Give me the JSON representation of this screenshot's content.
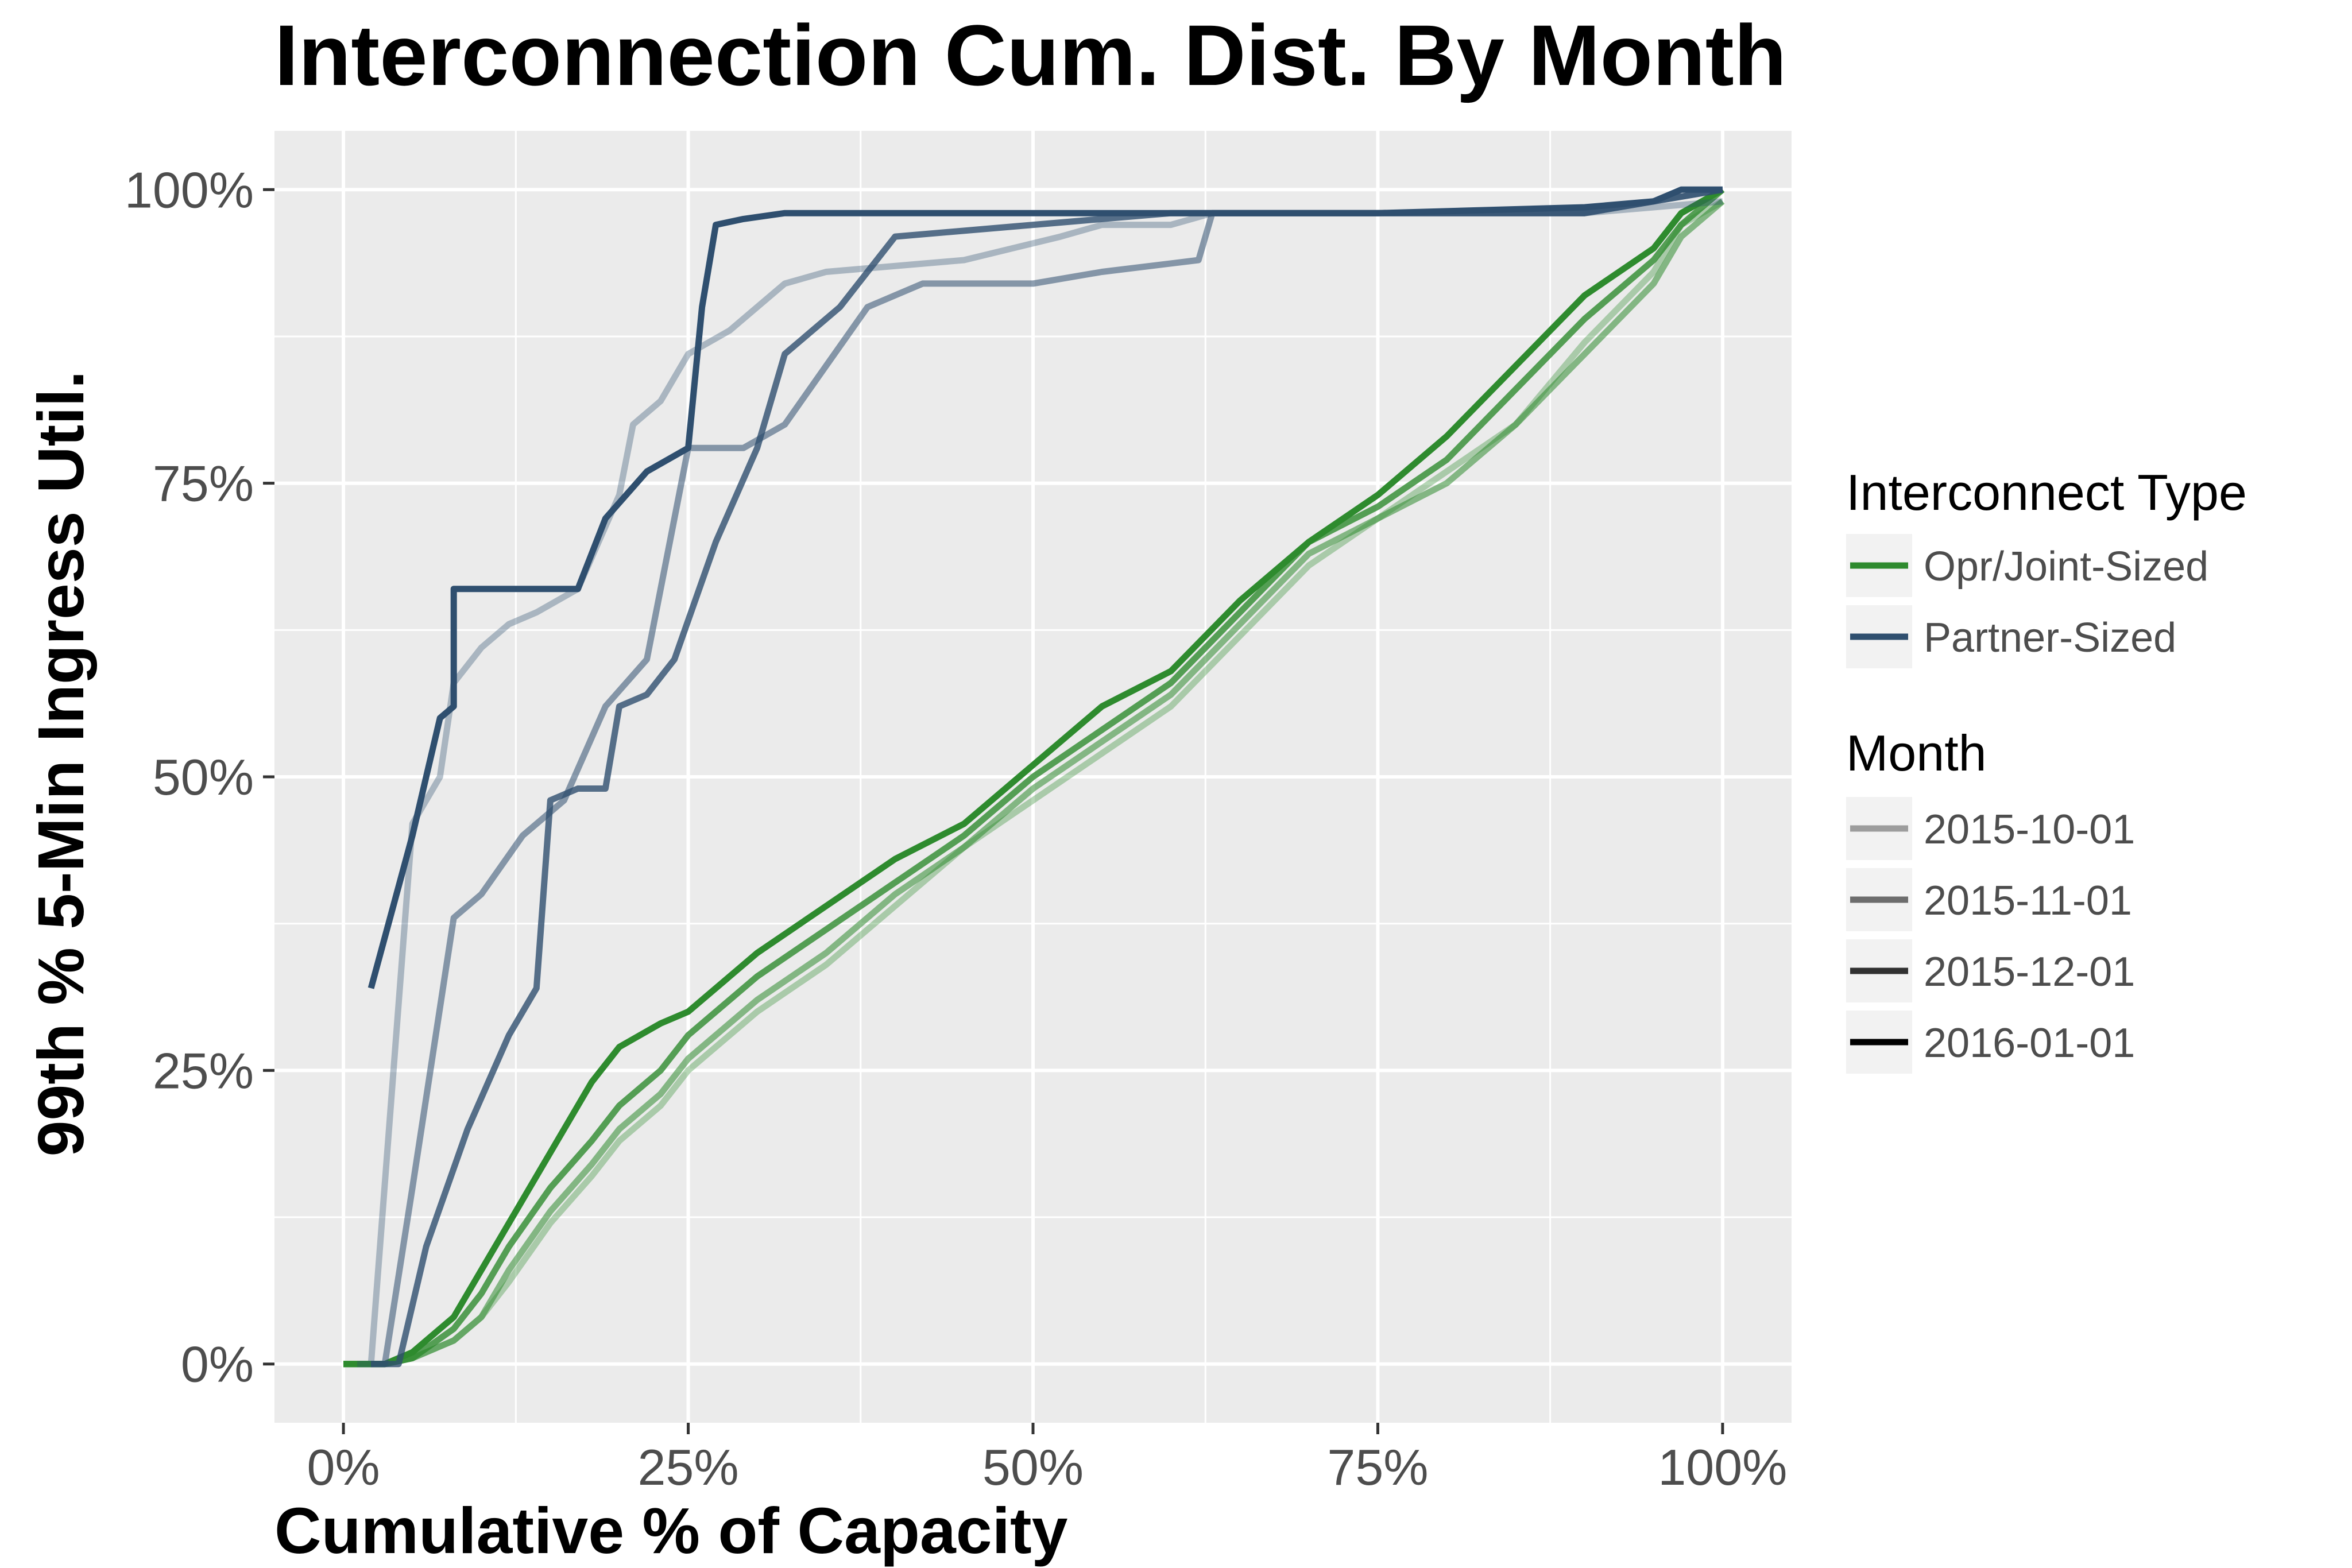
{
  "chart_data": {
    "type": "line",
    "title": "Interconnection Cum. Dist. By Month",
    "xlabel": "Cumulative % of Capacity",
    "ylabel": "99th % 5-Min Ingress Util.",
    "xlim": [
      -0.05,
      1.05
    ],
    "ylim": [
      -0.05,
      1.05
    ],
    "x_ticks": [
      0,
      0.25,
      0.5,
      0.75,
      1
    ],
    "x_tick_labels": [
      "0%",
      "25%",
      "50%",
      "75%",
      "100%"
    ],
    "y_ticks": [
      0,
      0.25,
      0.5,
      0.75,
      1
    ],
    "y_tick_labels": [
      "0%",
      "25%",
      "50%",
      "75%",
      "100%"
    ],
    "grid": true,
    "panel_background": "#ebebeb",
    "legend_position": "right",
    "legend": {
      "type_title": "Interconnect Type",
      "types": [
        {
          "label": "Opr/Joint-Sized",
          "color": "#2e8b2e"
        },
        {
          "label": "Partner-Sized",
          "color": "#2f4f6f"
        }
      ],
      "month_title": "Month",
      "months": [
        {
          "label": "2015-10-01",
          "alpha": 0.35
        },
        {
          "label": "2015-11-01",
          "alpha": 0.55
        },
        {
          "label": "2015-12-01",
          "alpha": 0.8
        },
        {
          "label": "2016-01-01",
          "alpha": 1.0
        }
      ]
    },
    "series": [
      {
        "type": "Opr/Joint-Sized",
        "month": "2015-10-01",
        "color": "#2e8b2e",
        "alpha": 0.35,
        "x": [
          0,
          0.03,
          0.05,
          0.08,
          0.1,
          0.12,
          0.15,
          0.18,
          0.2,
          0.23,
          0.25,
          0.3,
          0.35,
          0.4,
          0.45,
          0.5,
          0.55,
          0.6,
          0.65,
          0.7,
          0.75,
          0.8,
          0.85,
          0.9,
          0.95,
          0.97,
          1.0
        ],
        "y": [
          0,
          0,
          0.005,
          0.02,
          0.04,
          0.07,
          0.12,
          0.16,
          0.19,
          0.22,
          0.25,
          0.3,
          0.34,
          0.39,
          0.44,
          0.48,
          0.52,
          0.56,
          0.62,
          0.68,
          0.72,
          0.76,
          0.8,
          0.87,
          0.93,
          0.97,
          0.99
        ]
      },
      {
        "type": "Opr/Joint-Sized",
        "month": "2015-11-01",
        "color": "#2e8b2e",
        "alpha": 0.55,
        "x": [
          0,
          0.03,
          0.05,
          0.08,
          0.1,
          0.12,
          0.15,
          0.18,
          0.2,
          0.23,
          0.25,
          0.3,
          0.35,
          0.4,
          0.45,
          0.5,
          0.55,
          0.6,
          0.65,
          0.7,
          0.75,
          0.8,
          0.85,
          0.9,
          0.95,
          0.97,
          1.0
        ],
        "y": [
          0,
          0,
          0.005,
          0.02,
          0.04,
          0.08,
          0.13,
          0.17,
          0.2,
          0.23,
          0.26,
          0.31,
          0.35,
          0.4,
          0.44,
          0.49,
          0.53,
          0.57,
          0.63,
          0.69,
          0.72,
          0.75,
          0.8,
          0.86,
          0.92,
          0.96,
          0.99
        ]
      },
      {
        "type": "Opr/Joint-Sized",
        "month": "2015-12-01",
        "color": "#2e8b2e",
        "alpha": 0.8,
        "x": [
          0,
          0.03,
          0.05,
          0.08,
          0.1,
          0.12,
          0.15,
          0.18,
          0.2,
          0.23,
          0.25,
          0.3,
          0.35,
          0.4,
          0.45,
          0.5,
          0.55,
          0.6,
          0.65,
          0.7,
          0.75,
          0.8,
          0.85,
          0.9,
          0.95,
          0.97,
          1.0
        ],
        "y": [
          0,
          0,
          0.005,
          0.03,
          0.06,
          0.1,
          0.15,
          0.19,
          0.22,
          0.25,
          0.28,
          0.33,
          0.37,
          0.41,
          0.45,
          0.5,
          0.54,
          0.58,
          0.64,
          0.7,
          0.73,
          0.77,
          0.83,
          0.89,
          0.94,
          0.97,
          1.0
        ]
      },
      {
        "type": "Opr/Joint-Sized",
        "month": "2016-01-01",
        "color": "#2e8b2e",
        "alpha": 1.0,
        "x": [
          0,
          0.03,
          0.05,
          0.08,
          0.1,
          0.12,
          0.15,
          0.18,
          0.2,
          0.23,
          0.25,
          0.3,
          0.35,
          0.4,
          0.45,
          0.5,
          0.55,
          0.6,
          0.65,
          0.7,
          0.75,
          0.8,
          0.85,
          0.9,
          0.95,
          0.97,
          1.0
        ],
        "y": [
          0,
          0,
          0.01,
          0.04,
          0.08,
          0.12,
          0.18,
          0.24,
          0.27,
          0.29,
          0.3,
          0.35,
          0.39,
          0.43,
          0.46,
          0.51,
          0.56,
          0.59,
          0.65,
          0.7,
          0.74,
          0.79,
          0.85,
          0.91,
          0.95,
          0.98,
          1.0
        ]
      },
      {
        "type": "Partner-Sized",
        "month": "2015-10-01",
        "color": "#2f4f6f",
        "alpha": 0.35,
        "x": [
          0.01,
          0.02,
          0.05,
          0.07,
          0.08,
          0.1,
          0.12,
          0.14,
          0.17,
          0.2,
          0.21,
          0.23,
          0.25,
          0.28,
          0.32,
          0.35,
          0.45,
          0.52,
          0.55,
          0.6,
          0.63,
          0.75,
          0.9,
          0.95,
          1.0
        ],
        "y": [
          0,
          0,
          0.46,
          0.5,
          0.58,
          0.61,
          0.63,
          0.64,
          0.66,
          0.74,
          0.8,
          0.82,
          0.86,
          0.88,
          0.92,
          0.93,
          0.94,
          0.96,
          0.97,
          0.97,
          0.98,
          0.98,
          0.98,
          0.985,
          0.99
        ]
      },
      {
        "type": "Partner-Sized",
        "month": "2015-11-01",
        "color": "#2f4f6f",
        "alpha": 0.55,
        "x": [
          0.02,
          0.03,
          0.05,
          0.08,
          0.1,
          0.13,
          0.16,
          0.19,
          0.22,
          0.25,
          0.29,
          0.32,
          0.35,
          0.38,
          0.42,
          0.5,
          0.55,
          0.62,
          0.63,
          0.75,
          0.9,
          0.95,
          1.0
        ],
        "y": [
          0,
          0,
          0.15,
          0.38,
          0.4,
          0.45,
          0.48,
          0.56,
          0.6,
          0.78,
          0.78,
          0.8,
          0.85,
          0.9,
          0.92,
          0.92,
          0.93,
          0.94,
          0.98,
          0.98,
          0.98,
          0.99,
          1.0
        ]
      },
      {
        "type": "Partner-Sized",
        "month": "2015-12-01",
        "color": "#2f4f6f",
        "alpha": 0.8,
        "x": [
          0.02,
          0.04,
          0.06,
          0.09,
          0.12,
          0.14,
          0.15,
          0.17,
          0.19,
          0.2,
          0.22,
          0.24,
          0.27,
          0.3,
          0.32,
          0.36,
          0.4,
          0.5,
          0.6,
          0.75,
          0.9,
          0.95,
          1.0
        ],
        "y": [
          0,
          0,
          0.1,
          0.2,
          0.28,
          0.32,
          0.48,
          0.49,
          0.49,
          0.56,
          0.57,
          0.6,
          0.7,
          0.78,
          0.86,
          0.9,
          0.96,
          0.97,
          0.98,
          0.98,
          0.98,
          0.99,
          1.0
        ]
      },
      {
        "type": "Partner-Sized",
        "month": "2016-01-01",
        "color": "#2f4f6f",
        "alpha": 1.0,
        "x": [
          0.02,
          0.05,
          0.07,
          0.08,
          0.08,
          0.17,
          0.19,
          0.22,
          0.25,
          0.26,
          0.27,
          0.29,
          0.32,
          0.5,
          0.75,
          0.9,
          0.95,
          0.97,
          1.0
        ],
        "y": [
          0.32,
          0.45,
          0.55,
          0.56,
          0.66,
          0.66,
          0.72,
          0.76,
          0.78,
          0.9,
          0.97,
          0.975,
          0.98,
          0.98,
          0.98,
          0.985,
          0.99,
          1.0,
          1.0
        ]
      }
    ]
  }
}
